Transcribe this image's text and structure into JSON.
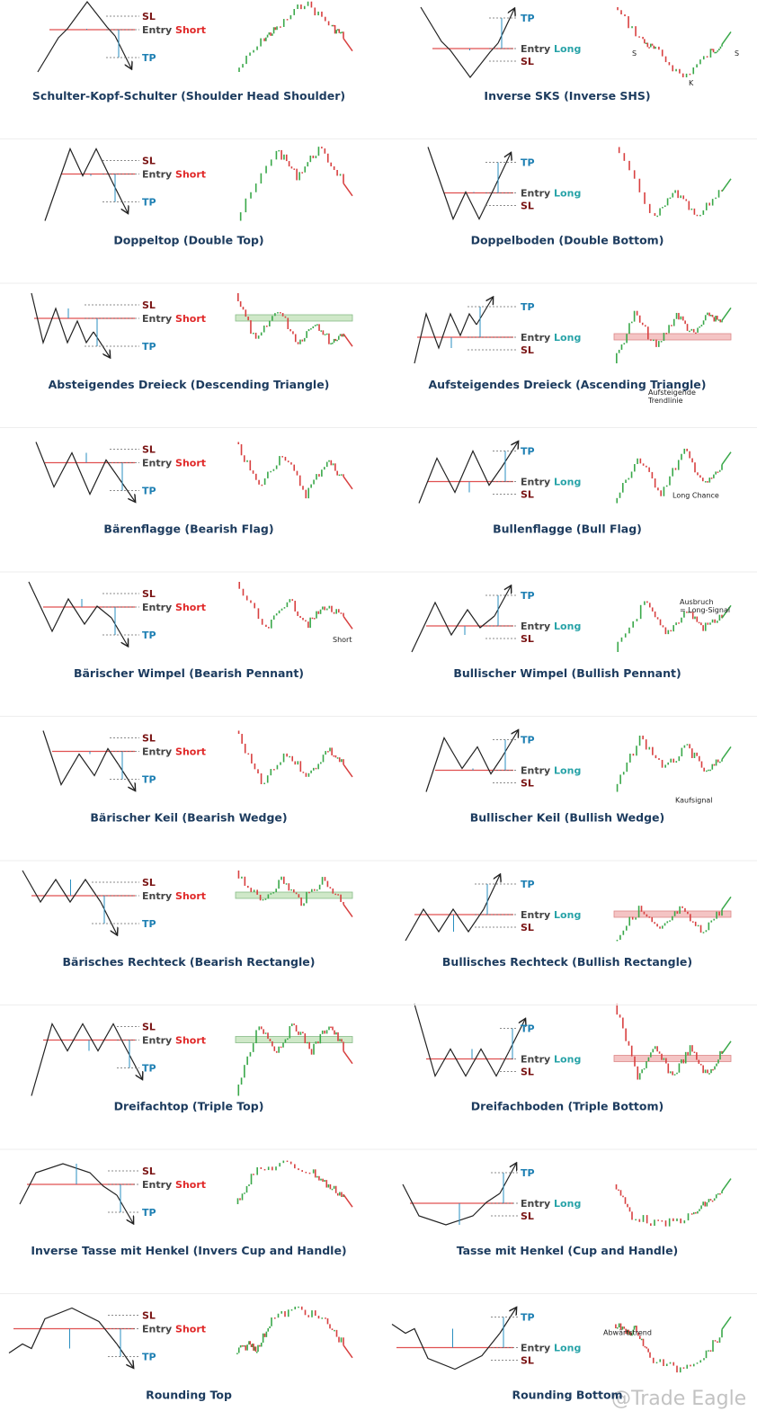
{
  "panels": [
    {
      "title": "Schulter-Kopf-Schulter (Shoulder Head Shoulder)",
      "sl": "SL",
      "entry": "Entry",
      "direction": "Short",
      "tp": "TP"
    },
    {
      "title": "Inverse SKS (Inverse SHS)",
      "sl": "SL",
      "entry": "Entry",
      "direction": "Long",
      "tp": "TP",
      "notes": [
        "S",
        "K",
        "S"
      ]
    },
    {
      "title": "Doppeltop (Double Top)",
      "sl": "SL",
      "entry": "Entry",
      "direction": "Short",
      "tp": "TP"
    },
    {
      "title": "Doppelboden (Double Bottom)",
      "sl": "SL",
      "entry": "Entry",
      "direction": "Long",
      "tp": "TP"
    },
    {
      "title": "Absteigendes Dreieck (Descending Triangle)",
      "sl": "SL",
      "entry": "Entry",
      "direction": "Short",
      "tp": "TP"
    },
    {
      "title": "Aufsteigendes Dreieck (Ascending Triangle)",
      "sl": "SL",
      "entry": "Entry",
      "direction": "Long",
      "tp": "TP",
      "notes": [
        "Aufsteigende",
        "Trendlinie"
      ]
    },
    {
      "title": "Bärenflagge (Bearish Flag)",
      "sl": "SL",
      "entry": "Entry",
      "direction": "Short",
      "tp": "TP"
    },
    {
      "title": "Bullenflagge (Bull Flag)",
      "sl": "SL",
      "entry": "Entry",
      "direction": "Long",
      "tp": "TP",
      "notes": [
        "Long Chance"
      ]
    },
    {
      "title": "Bärischer Wimpel (Bearish Pennant)",
      "sl": "SL",
      "entry": "Entry",
      "direction": "Short",
      "tp": "TP",
      "notes": [
        "Short"
      ]
    },
    {
      "title": "Bullischer Wimpel (Bullish Pennant)",
      "sl": "SL",
      "entry": "Entry",
      "direction": "Long",
      "tp": "TP",
      "notes": [
        "Ausbruch",
        "= Long-Signal"
      ]
    },
    {
      "title": "Bärischer Keil (Bearish Wedge)",
      "sl": "SL",
      "entry": "Entry",
      "direction": "Short",
      "tp": "TP"
    },
    {
      "title": "Bullischer Keil (Bullish Wedge)",
      "sl": "SL",
      "entry": "Entry",
      "direction": "Long",
      "tp": "TP",
      "notes": [
        "Kaufsignal"
      ]
    },
    {
      "title": "Bärisches Rechteck (Bearish Rectangle)",
      "sl": "SL",
      "entry": "Entry",
      "direction": "Short",
      "tp": "TP"
    },
    {
      "title": "Bullisches Rechteck (Bullish Rectangle)",
      "sl": "SL",
      "entry": "Entry",
      "direction": "Long",
      "tp": "TP"
    },
    {
      "title": "Dreifachtop (Triple Top)",
      "sl": "SL",
      "entry": "Entry",
      "direction": "Short",
      "tp": "TP"
    },
    {
      "title": "Dreifachboden (Triple Bottom)",
      "sl": "SL",
      "entry": "Entry",
      "direction": "Long",
      "tp": "TP"
    },
    {
      "title": "Inverse Tasse mit Henkel (Invers Cup and Handle)",
      "sl": "SL",
      "entry": "Entry",
      "direction": "Short",
      "tp": "TP"
    },
    {
      "title": "Tasse mit Henkel (Cup and Handle)",
      "sl": "SL",
      "entry": "Entry",
      "direction": "Long",
      "tp": "TP"
    },
    {
      "title": "Rounding Top",
      "sl": "SL",
      "entry": "Entry",
      "direction": "Short",
      "tp": "TP"
    },
    {
      "title": "Rounding Bottom",
      "sl": "SL",
      "entry": "Entry",
      "direction": "Long",
      "tp": "TP",
      "notes": [
        "Abwärtstrend"
      ]
    }
  ],
  "watermark": "@Trade Eagle"
}
